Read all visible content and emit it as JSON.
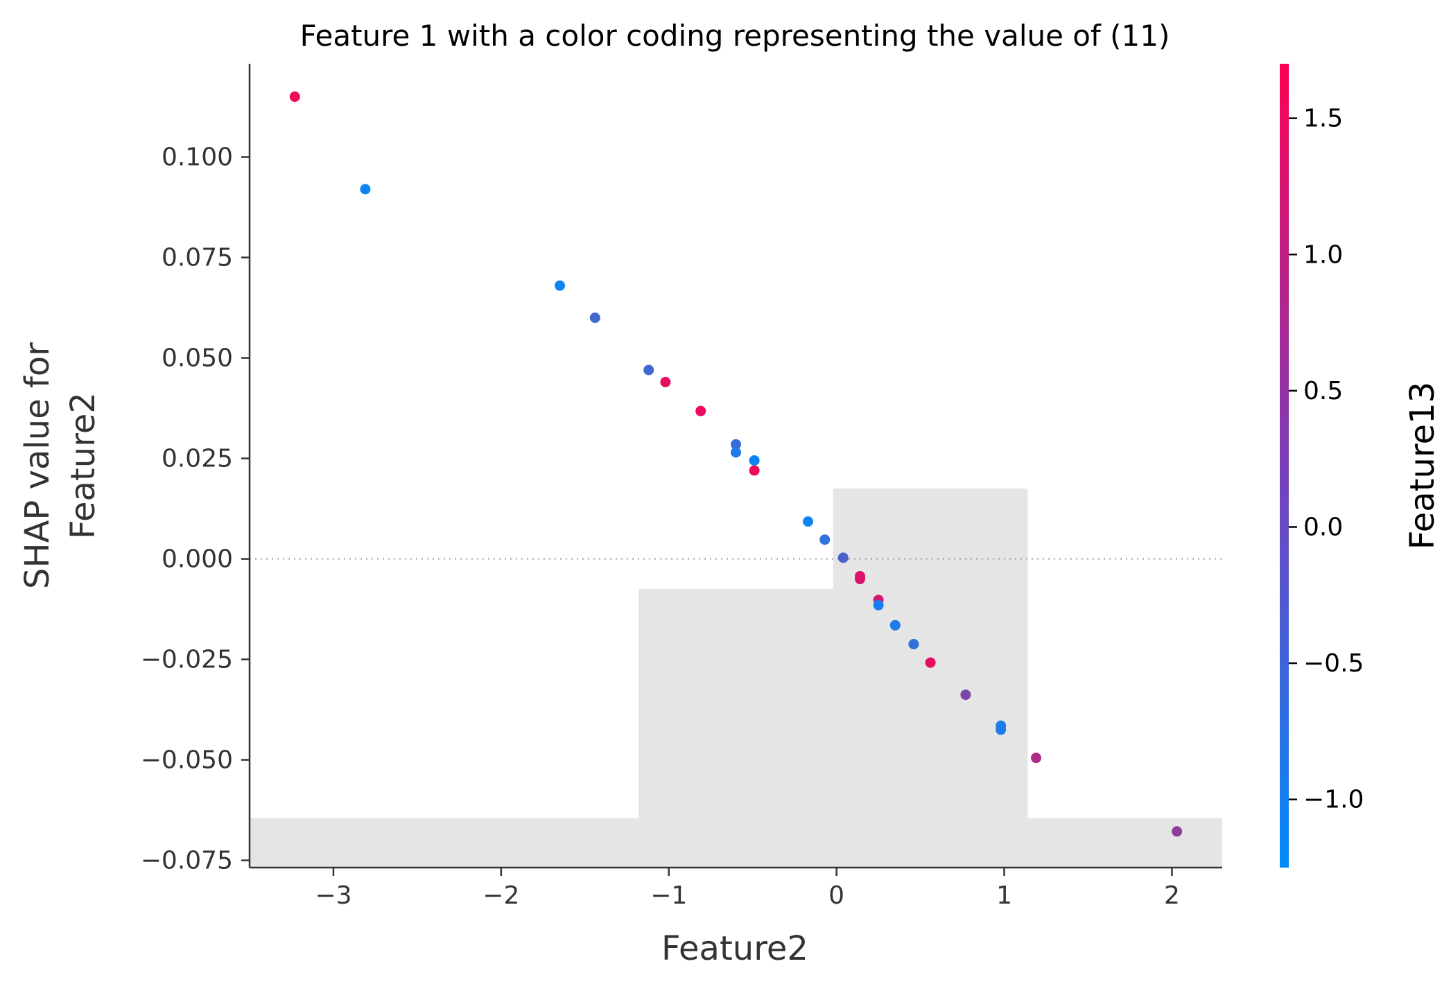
{
  "chart_data": {
    "type": "scatter",
    "title": "Feature 1 with a color coding representing the value of (11)",
    "xlabel": "Feature2",
    "ylabel_lines": [
      "SHAP value for",
      "Feature2"
    ],
    "xlim": [
      -3.5,
      2.3
    ],
    "ylim": [
      -0.0768,
      0.1232
    ],
    "xticks": [
      -3,
      -2,
      -1,
      0,
      1,
      2
    ],
    "xtick_labels": [
      "−3",
      "−2",
      "−1",
      "0",
      "1",
      "2"
    ],
    "yticks": [
      0.1,
      0.075,
      0.05,
      0.025,
      0.0,
      -0.025,
      -0.05,
      -0.075
    ],
    "ytick_labels": [
      "0.100",
      "0.075",
      "0.050",
      "0.025",
      "0.000",
      "−0.025",
      "−0.050",
      "−0.075"
    ],
    "zero_line": true,
    "histogram_background": [
      {
        "x0": -3.5,
        "x1": -1.18,
        "y_top": -0.0645
      },
      {
        "x0": -1.18,
        "x1": -0.02,
        "y_top": -0.0075
      },
      {
        "x0": -0.02,
        "x1": 1.14,
        "y_top": 0.0175
      },
      {
        "x0": 1.14,
        "x1": 2.3,
        "y_top": -0.0645
      }
    ],
    "colorbar": {
      "label": "Feature13",
      "range": [
        -1.25,
        1.7
      ],
      "ticks": [
        1.5,
        1.0,
        0.5,
        0.0,
        -0.5,
        -1.0
      ],
      "tick_labels": [
        "1.5",
        "1.0",
        "0.5",
        "0.0",
        "−0.5",
        "−1.0"
      ],
      "colormap": [
        "#008bfb",
        "#ff0052"
      ]
    },
    "points": [
      {
        "x": -3.23,
        "y": 0.115,
        "c": 1.5
      },
      {
        "x": -2.81,
        "y": 0.092,
        "c": -1.1
      },
      {
        "x": -1.65,
        "y": 0.068,
        "c": -1.1
      },
      {
        "x": -1.44,
        "y": 0.06,
        "c": -0.5
      },
      {
        "x": -1.12,
        "y": 0.047,
        "c": -0.5
      },
      {
        "x": -1.02,
        "y": 0.044,
        "c": 1.4
      },
      {
        "x": -0.81,
        "y": 0.0368,
        "c": 1.5
      },
      {
        "x": -0.6,
        "y": 0.0285,
        "c": -0.6
      },
      {
        "x": -0.6,
        "y": 0.0265,
        "c": -0.9
      },
      {
        "x": -0.49,
        "y": 0.0245,
        "c": -1.1
      },
      {
        "x": -0.49,
        "y": 0.022,
        "c": 1.5
      },
      {
        "x": -0.17,
        "y": 0.0093,
        "c": -1.1
      },
      {
        "x": -0.07,
        "y": 0.0048,
        "c": -0.7
      },
      {
        "x": 0.04,
        "y": 0.0003,
        "c": -0.4
      },
      {
        "x": 0.14,
        "y": -0.0043,
        "c": 1.4
      },
      {
        "x": 0.14,
        "y": -0.005,
        "c": 1.3
      },
      {
        "x": 0.25,
        "y": -0.0102,
        "c": 1.2
      },
      {
        "x": 0.25,
        "y": -0.0115,
        "c": -1.0
      },
      {
        "x": 0.35,
        "y": -0.0165,
        "c": -0.9
      },
      {
        "x": 0.46,
        "y": -0.0212,
        "c": -0.7
      },
      {
        "x": 0.56,
        "y": -0.0258,
        "c": 1.4
      },
      {
        "x": 0.77,
        "y": -0.0338,
        "c": 0.2
      },
      {
        "x": 0.98,
        "y": -0.0415,
        "c": -0.9
      },
      {
        "x": 0.98,
        "y": -0.0425,
        "c": -0.9
      },
      {
        "x": 1.19,
        "y": -0.0495,
        "c": 0.8
      },
      {
        "x": 2.03,
        "y": -0.0678,
        "c": 0.4
      }
    ]
  }
}
